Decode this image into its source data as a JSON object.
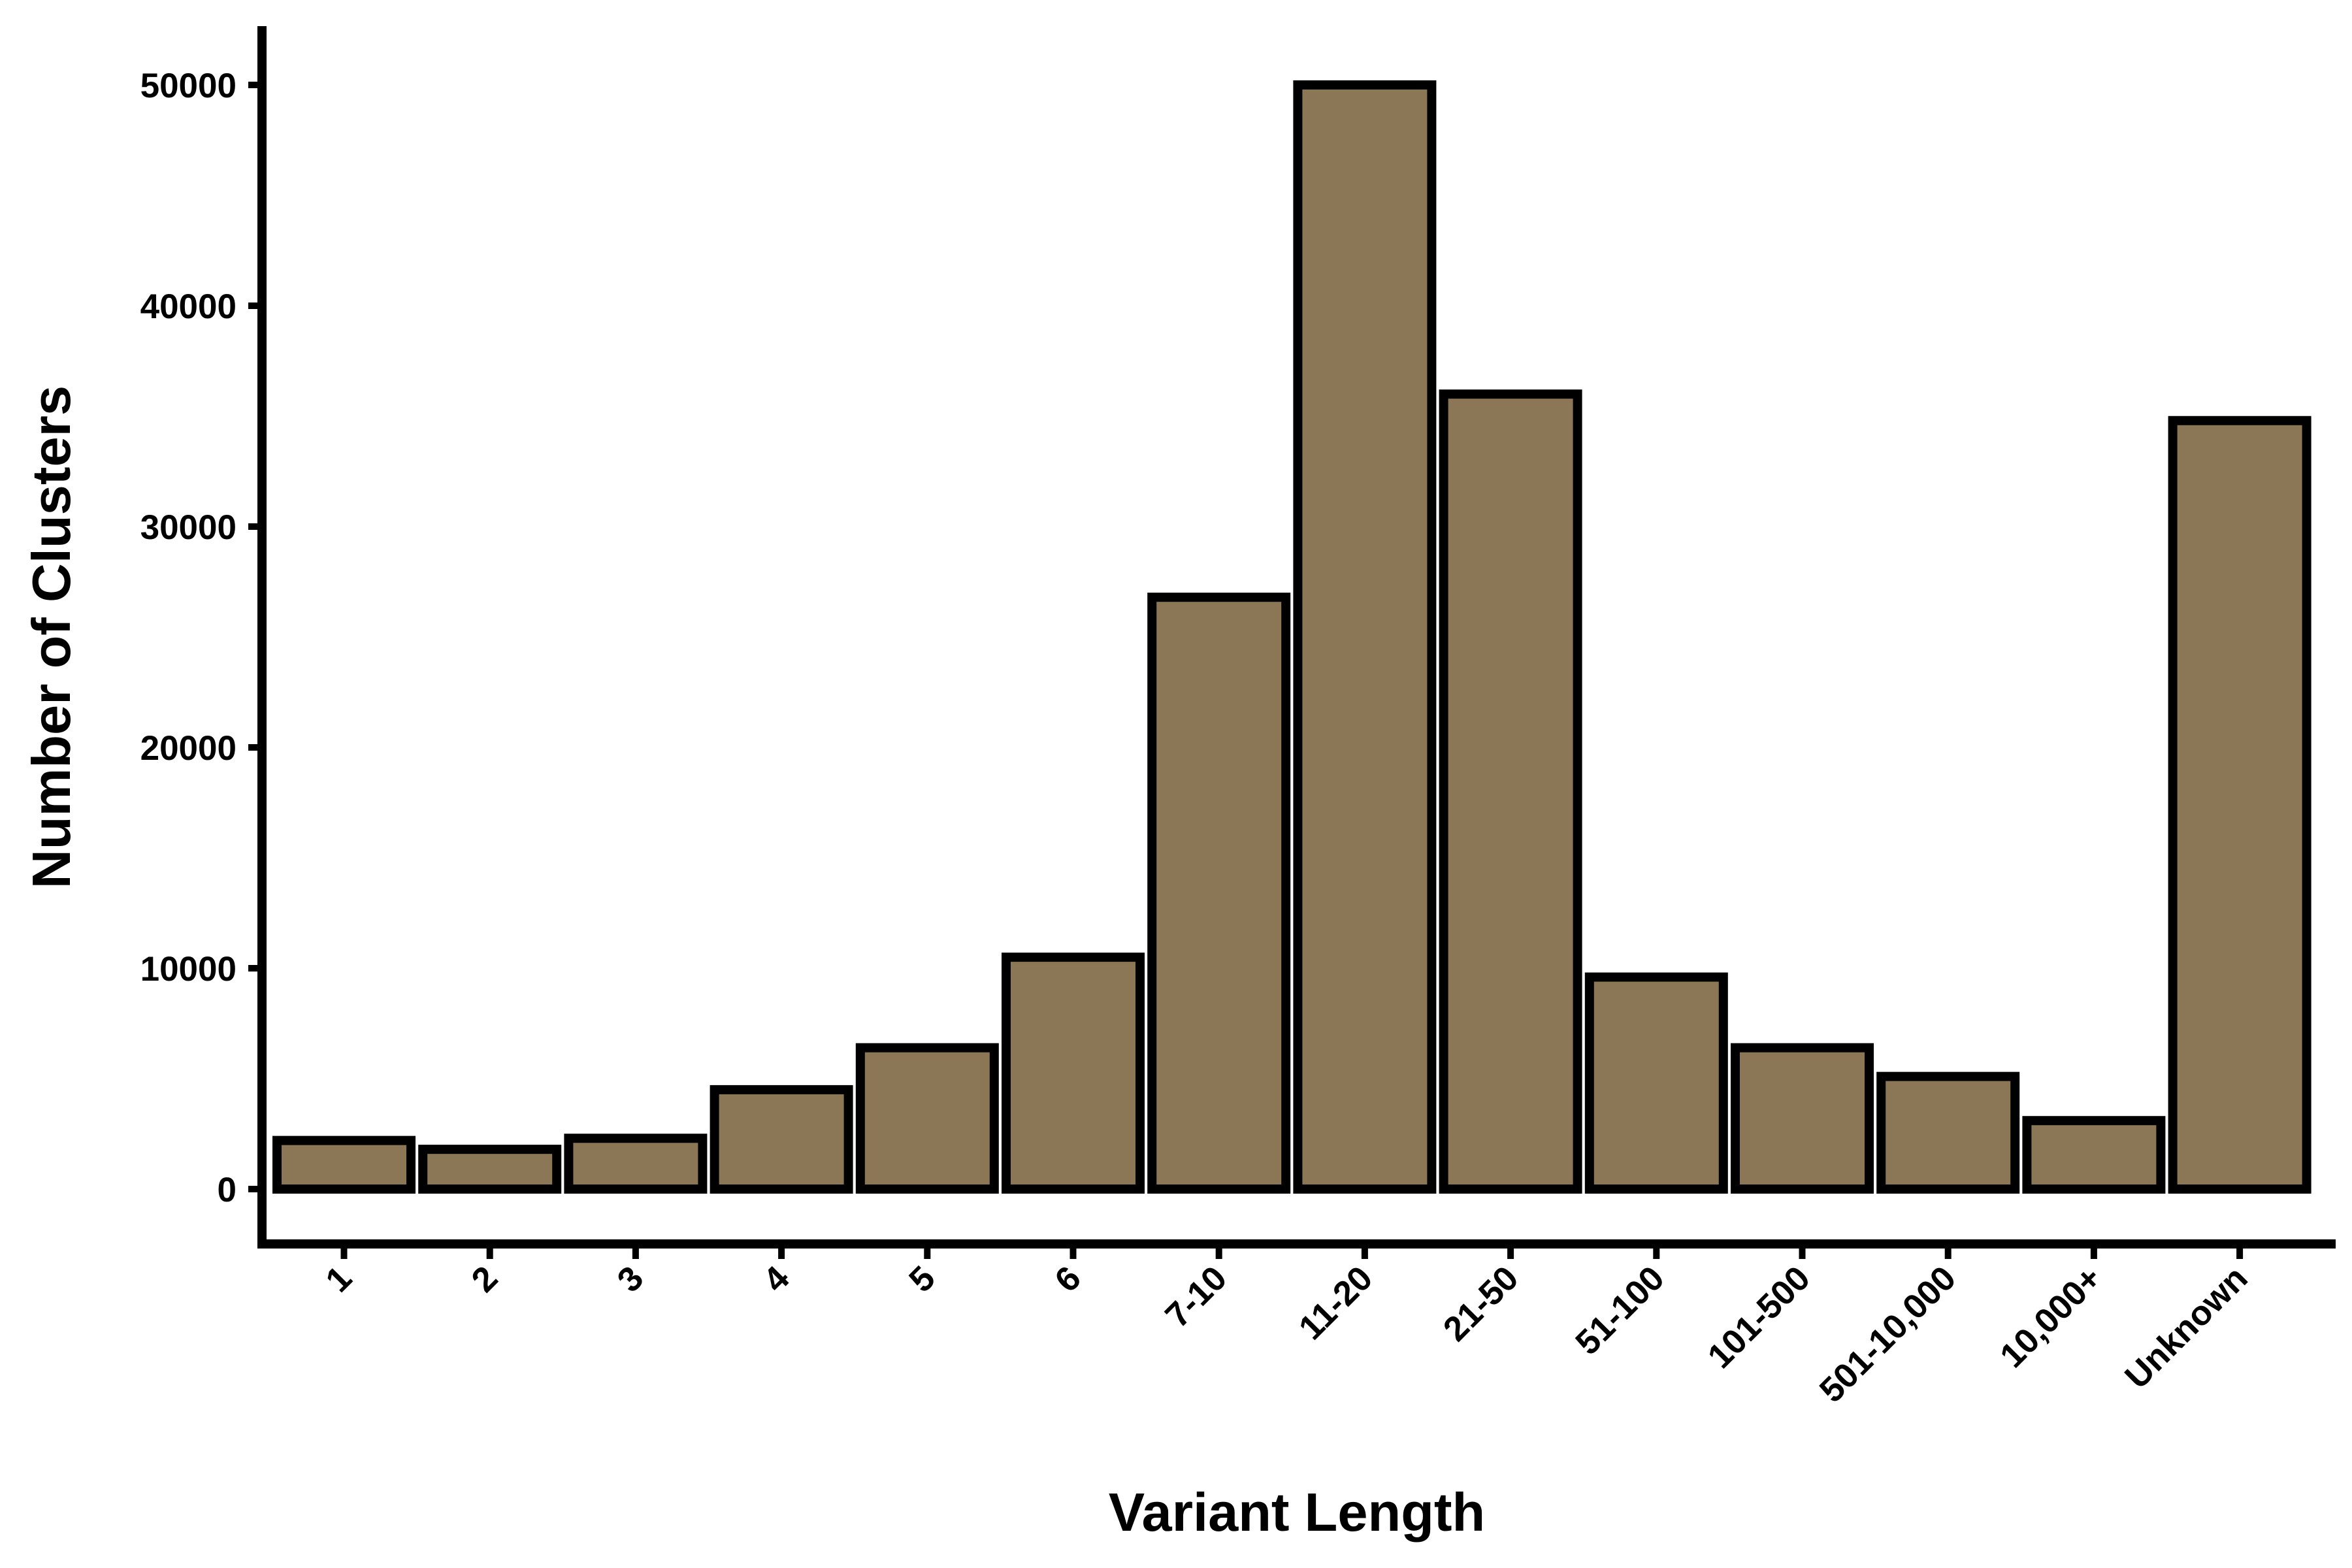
{
  "chart_data": {
    "type": "bar",
    "title": "",
    "xlabel": "Variant Length",
    "ylabel": "Number of Clusters",
    "categories": [
      "1",
      "2",
      "3",
      "4",
      "5",
      "6",
      "7-10",
      "11-20",
      "21-50",
      "51-100",
      "101-500",
      "501-10,000",
      "10,000+",
      "Unknown"
    ],
    "values": [
      2200,
      1800,
      2300,
      4500,
      6400,
      10500,
      26800,
      50000,
      36000,
      9600,
      6400,
      5100,
      3100,
      34800
    ],
    "ylim": [
      0,
      52000
    ],
    "yticks": [
      0,
      10000,
      20000,
      30000,
      40000,
      50000
    ],
    "grid": false,
    "legend": "none",
    "colors": {
      "bar_fill": "#8b7655",
      "bar_stroke": "#000000",
      "axis": "#000000",
      "text": "#000000"
    }
  }
}
